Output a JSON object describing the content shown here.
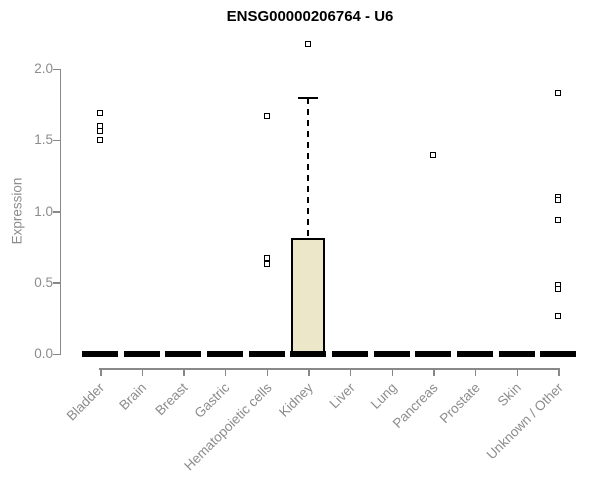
{
  "title": "ENSG00000206764 - U6",
  "chart_data": {
    "type": "boxplot",
    "title": "ENSG00000206764 - U6",
    "xlabel": "",
    "ylabel": "Expression",
    "ylim": [
      0,
      2.2
    ],
    "yticks": [
      "0.0",
      "0.5",
      "1.0",
      "1.5",
      "2.0"
    ],
    "ytick_values": [
      0,
      0.5,
      1,
      1.5,
      2
    ],
    "grid": false,
    "legend": "none",
    "outlier_marker": "open-square",
    "categories": [
      "Bladder",
      "Brain",
      "Breast",
      "Gastric",
      "Hematopoietic cells",
      "Kidney",
      "Liver",
      "Lung",
      "Pancreas",
      "Prostate",
      "Skin",
      "Unknown / Other"
    ],
    "series": [
      {
        "category": "Bladder",
        "median": 0,
        "q1": 0,
        "q3": 0,
        "whisker_low": 0,
        "whisker_high": 0,
        "outliers": [
          1.69,
          1.6,
          1.56,
          1.5
        ]
      },
      {
        "category": "Brain",
        "median": 0,
        "q1": 0,
        "q3": 0,
        "whisker_low": 0,
        "whisker_high": 0,
        "outliers": []
      },
      {
        "category": "Breast",
        "median": 0,
        "q1": 0,
        "q3": 0,
        "whisker_low": 0,
        "whisker_high": 0,
        "outliers": []
      },
      {
        "category": "Gastric",
        "median": 0,
        "q1": 0,
        "q3": 0,
        "whisker_low": 0,
        "whisker_high": 0,
        "outliers": []
      },
      {
        "category": "Hematopoietic cells",
        "median": 0,
        "q1": 0,
        "q3": 0,
        "whisker_low": 0,
        "whisker_high": 0,
        "outliers": [
          1.67,
          0.67,
          0.63
        ]
      },
      {
        "category": "Kidney",
        "median": 0,
        "q1": 0,
        "q3": 0.81,
        "whisker_low": 0,
        "whisker_high": 1.79,
        "outliers": [
          2.17
        ]
      },
      {
        "category": "Liver",
        "median": 0,
        "q1": 0,
        "q3": 0,
        "whisker_low": 0,
        "whisker_high": 0,
        "outliers": []
      },
      {
        "category": "Lung",
        "median": 0,
        "q1": 0,
        "q3": 0,
        "whisker_low": 0,
        "whisker_high": 0,
        "outliers": []
      },
      {
        "category": "Pancreas",
        "median": 0,
        "q1": 0,
        "q3": 0,
        "whisker_low": 0,
        "whisker_high": 0,
        "outliers": [
          1.39
        ]
      },
      {
        "category": "Prostate",
        "median": 0,
        "q1": 0,
        "q3": 0,
        "whisker_low": 0,
        "whisker_high": 0,
        "outliers": []
      },
      {
        "category": "Skin",
        "median": 0,
        "q1": 0,
        "q3": 0,
        "whisker_low": 0,
        "whisker_high": 0,
        "outliers": []
      },
      {
        "category": "Unknown / Other",
        "median": 0,
        "q1": 0,
        "q3": 0,
        "whisker_low": 0,
        "whisker_high": 0,
        "outliers": [
          1.83,
          1.1,
          1.08,
          0.94,
          0.48,
          0.45,
          0.26
        ]
      }
    ],
    "colors": {
      "box_fill": "#ece7c9",
      "box_border": "#000000",
      "median": "#000000",
      "axis": "#888888",
      "tick_label": "#8c8c8c",
      "title": "#000000"
    }
  }
}
